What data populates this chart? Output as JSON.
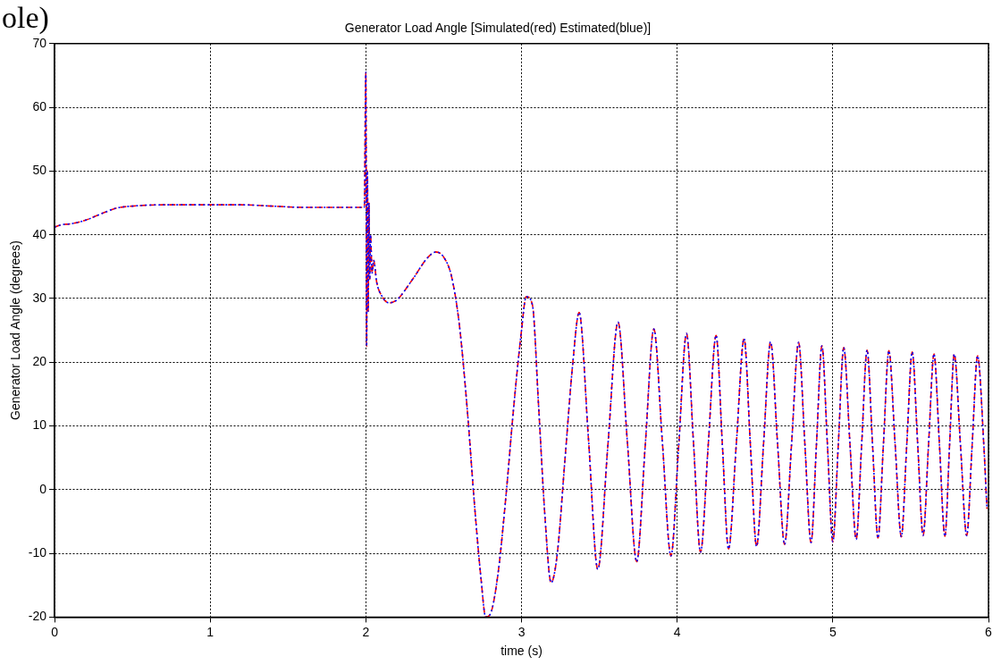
{
  "chart_data": {
    "type": "line",
    "title": "Generator Load Angle [Simulated(red) Estimated(blue)]",
    "xlabel": "time (s)",
    "ylabel": "Generator Load Angle (degrees)",
    "annotations": [
      "ole)"
    ],
    "x": [
      0,
      0.05,
      0.1,
      0.2,
      0.3,
      0.4,
      0.5,
      0.7,
      1.0,
      1.2,
      1.4,
      1.6,
      1.99,
      2.0,
      2.005,
      2.01,
      2.015,
      2.02,
      2.025,
      2.03,
      2.04,
      2.05,
      2.07,
      2.1,
      2.15,
      2.2,
      2.3,
      2.4,
      2.45,
      2.5,
      2.55,
      2.6,
      2.65,
      2.7,
      2.74,
      2.77,
      2.8,
      2.85,
      2.9,
      2.95,
      3.0,
      3.03,
      3.07,
      3.11,
      3.15,
      3.19,
      3.23,
      3.28,
      3.33,
      3.37,
      3.43,
      3.49,
      3.555,
      3.62,
      3.68,
      3.74,
      3.795,
      3.85,
      3.905,
      3.96,
      4.01,
      4.06,
      4.105,
      4.15,
      4.2,
      4.25,
      4.29,
      4.33,
      4.38,
      4.43,
      4.47,
      4.51,
      4.555,
      4.6,
      4.645,
      4.69,
      4.735,
      4.78,
      4.82,
      4.86,
      4.895,
      4.93,
      4.965,
      5.0,
      5.035,
      5.07,
      5.11,
      5.15,
      5.185,
      5.22,
      5.255,
      5.29,
      5.325,
      5.36,
      5.4,
      5.44,
      5.475,
      5.51,
      5.545,
      5.58,
      5.615,
      5.65,
      5.685,
      5.72,
      5.75,
      5.78,
      5.82,
      5.86,
      5.895,
      5.93,
      5.97,
      5.99
    ],
    "series": [
      {
        "color": "#ff0000",
        "line_style": "dashed",
        "values": [
          41.2,
          41.6,
          41.7,
          42.3,
          43.3,
          44.2,
          44.5,
          44.7,
          44.7,
          44.7,
          44.5,
          44.3,
          44.3,
          65.5,
          22.5,
          50,
          28,
          45,
          33,
          40,
          34,
          36,
          32.5,
          30.5,
          29.3,
          29.8,
          33,
          36.5,
          37.3,
          36.5,
          33.5,
          26,
          13,
          -3,
          -14,
          -20,
          -19.5,
          -13,
          -1,
          13,
          25,
          30.3,
          29,
          13,
          -4,
          -14.6,
          -10,
          5,
          20,
          27.8,
          8,
          -12.5,
          7,
          26.3,
          7.5,
          -11.3,
          7,
          25.2,
          7.4,
          -10.4,
          7,
          24.5,
          7.3,
          -9.8,
          7.2,
          24.2,
          7.2,
          -9.3,
          7.2,
          23.7,
          7.2,
          -8.9,
          7.2,
          23.2,
          7.2,
          -8.6,
          7.2,
          23.1,
          7.3,
          -8.3,
          7.2,
          22.6,
          7.2,
          -8.2,
          7,
          22.3,
          7.2,
          -7.8,
          7,
          21.9,
          7.1,
          -7.6,
          7.1,
          21.8,
          7.2,
          -7.4,
          7.1,
          21.6,
          7.2,
          -7.2,
          7.1,
          21.3,
          7,
          -7.3,
          7,
          21.3,
          7,
          -7.2,
          7,
          21,
          7,
          -3
        ]
      },
      {
        "color": "#0000ff",
        "line_style": "dotted",
        "values": [
          41.2,
          41.6,
          41.7,
          42.3,
          43.3,
          44.2,
          44.5,
          44.7,
          44.7,
          44.7,
          44.5,
          44.3,
          44.3,
          65.5,
          22.5,
          50,
          28,
          45,
          33,
          40,
          34,
          36,
          32.5,
          30.5,
          29.3,
          29.8,
          33,
          36.5,
          37.3,
          36.5,
          33.5,
          26,
          13,
          -3,
          -14,
          -20,
          -19.5,
          -13,
          -1,
          13,
          25,
          30.3,
          29,
          13,
          -4,
          -14.6,
          -10,
          5,
          20,
          27.8,
          8,
          -12.5,
          7,
          26.3,
          7.5,
          -11.3,
          7,
          25.2,
          7.4,
          -10.4,
          7,
          24.5,
          7.3,
          -9.8,
          7.2,
          24.2,
          7.2,
          -9.3,
          7.2,
          23.7,
          7.2,
          -8.9,
          7.2,
          23.2,
          7.2,
          -8.6,
          7.2,
          23.1,
          7.3,
          -8.3,
          7.2,
          22.6,
          7.2,
          -8.2,
          7,
          22.3,
          7.2,
          -7.8,
          7,
          21.9,
          7.1,
          -7.6,
          7.1,
          21.8,
          7.2,
          -7.4,
          7.1,
          21.6,
          7.2,
          -7.2,
          7.1,
          21.3,
          7,
          -7.3,
          7,
          21.3,
          7,
          -7.2,
          7,
          21,
          7,
          -3
        ]
      }
    ],
    "xlim": [
      0,
      6
    ],
    "xticks": [
      0,
      1,
      2,
      3,
      4,
      5,
      6
    ],
    "ylim": [
      -20,
      70
    ],
    "yticks": [
      -20,
      -10,
      0,
      10,
      20,
      30,
      40,
      50,
      60,
      70
    ],
    "grid": true
  }
}
